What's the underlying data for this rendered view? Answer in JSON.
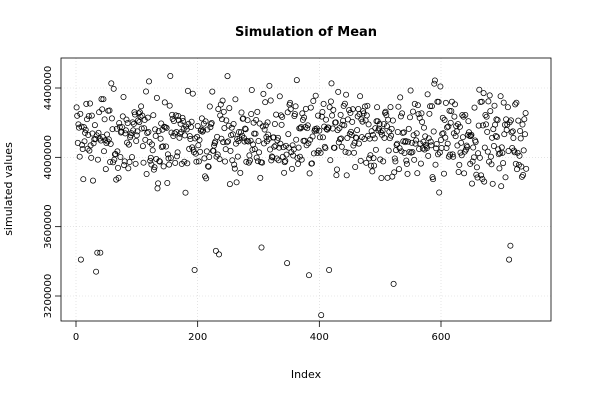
{
  "chart_data": {
    "type": "scatter",
    "title": "Simulation of Mean",
    "xlabel": "Index",
    "ylabel": "simulated values",
    "xlim": [
      0,
      740
    ],
    "ylim": [
      3100000,
      4500000
    ],
    "x_ticks": [
      0,
      200,
      400,
      600
    ],
    "x_tick_labels": [
      "0",
      "200",
      "400",
      "600"
    ],
    "y_ticks": [
      3200000,
      3600000,
      4000000,
      4400000
    ],
    "y_tick_labels": [
      "3200000",
      "3600000",
      "4000000",
      "4400000"
    ],
    "grid": true,
    "marker": "open-circle",
    "n_points": 740,
    "band_center": 4120000,
    "band_spread": 230000,
    "outliers": [
      {
        "x": 8,
        "y": 3410000
      },
      {
        "x": 33,
        "y": 3340000
      },
      {
        "x": 35,
        "y": 3450000
      },
      {
        "x": 40,
        "y": 3450000
      },
      {
        "x": 195,
        "y": 3350000
      },
      {
        "x": 230,
        "y": 3460000
      },
      {
        "x": 235,
        "y": 3440000
      },
      {
        "x": 305,
        "y": 3480000
      },
      {
        "x": 347,
        "y": 3390000
      },
      {
        "x": 383,
        "y": 3320000
      },
      {
        "x": 403,
        "y": 3090000
      },
      {
        "x": 416,
        "y": 3350000
      },
      {
        "x": 522,
        "y": 3270000
      },
      {
        "x": 712,
        "y": 3410000
      },
      {
        "x": 714,
        "y": 3490000
      }
    ]
  }
}
